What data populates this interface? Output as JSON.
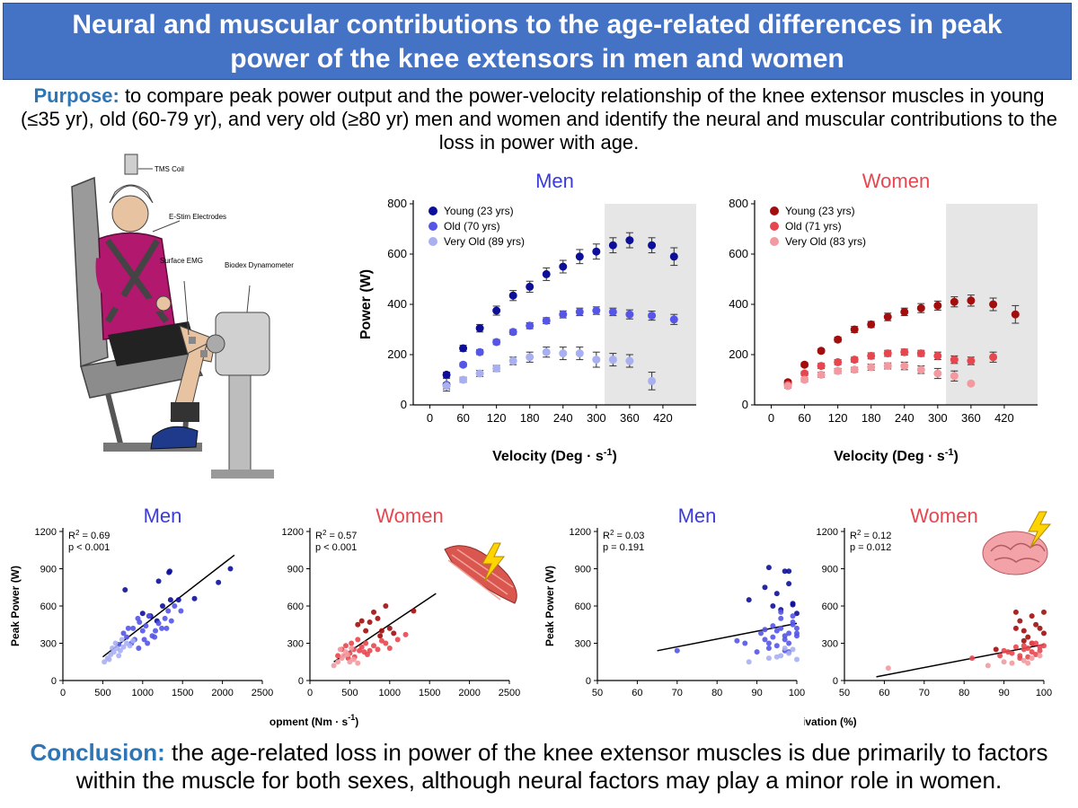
{
  "title": {
    "line1": "Neural and muscular contributions to the age-related differences in peak",
    "line2": "power of the knee extensors in men and women"
  },
  "purpose": {
    "label": "Purpose:",
    "text": " to compare peak power output and the power-velocity relationship of the knee extensor muscles in young (≤35 yr), old (60-79 yr), and very old (≥80 yr) men and women and identify the neural and muscular contributions to the loss in power with age."
  },
  "conclusion": {
    "label": "Conclusion:",
    "text": " the age-related loss in power of the knee extensor muscles is due primarily to factors within the muscle for both sexes, although neural factors may play a minor role in women."
  },
  "illustration": {
    "labels": [
      "TMS Coil",
      "E-Stim Electrodes",
      "Surface EMG",
      "Biodex Dynamometer"
    ]
  },
  "colors": {
    "young_men": "#0d0f99",
    "old_men": "#5555e8",
    "veryold_men": "#a9b0f2",
    "young_women": "#a30d0d",
    "old_women": "#e8464f",
    "veryold_women": "#f29aa0",
    "men_title": "#3b3bdc",
    "women_title": "#e8464f"
  },
  "chart_data": [
    {
      "id": "pv_men",
      "type": "scatter",
      "title": "Men",
      "xlabel": "Velocity (Deg · s",
      "xlabel_sup": "-1",
      "xlabel_end": ")",
      "ylabel": "Power (W)",
      "xlim": [
        -30,
        480
      ],
      "ylim": [
        0,
        800
      ],
      "xticks": [
        0,
        60,
        120,
        180,
        240,
        300,
        360,
        420
      ],
      "yticks": [
        0,
        200,
        400,
        600,
        800
      ],
      "shaded_region": [
        315,
        480
      ],
      "legend": "top-left",
      "series": [
        {
          "name": "Young (23 yrs)",
          "color": "#0d0f99",
          "x": [
            30,
            60,
            90,
            120,
            150,
            180,
            210,
            240,
            270,
            300,
            330,
            360,
            400,
            440
          ],
          "y": [
            120,
            225,
            305,
            375,
            435,
            470,
            520,
            550,
            590,
            610,
            635,
            655,
            635,
            590
          ],
          "err": [
            10,
            12,
            15,
            18,
            20,
            22,
            25,
            25,
            28,
            30,
            30,
            30,
            30,
            35
          ]
        },
        {
          "name": "Old (70 yrs)",
          "color": "#5555e8",
          "x": [
            30,
            60,
            90,
            120,
            150,
            180,
            210,
            240,
            270,
            300,
            330,
            360,
            400,
            440
          ],
          "y": [
            80,
            160,
            210,
            250,
            290,
            315,
            335,
            360,
            370,
            375,
            370,
            360,
            355,
            340
          ],
          "err": [
            25,
            8,
            10,
            10,
            10,
            12,
            12,
            14,
            15,
            15,
            15,
            18,
            18,
            20
          ]
        },
        {
          "name": "Very Old (89 yrs)",
          "color": "#a9b0f2",
          "x": [
            30,
            60,
            90,
            120,
            150,
            180,
            210,
            240,
            270,
            300,
            330,
            360,
            400
          ],
          "y": [
            75,
            100,
            125,
            145,
            175,
            190,
            210,
            205,
            205,
            180,
            180,
            175,
            95
          ],
          "err": [
            12,
            10,
            12,
            12,
            15,
            20,
            20,
            25,
            25,
            30,
            25,
            25,
            35
          ]
        }
      ]
    },
    {
      "id": "pv_women",
      "type": "scatter",
      "title": "Women",
      "xlabel": "Velocity (Deg · s",
      "xlabel_sup": "-1",
      "xlabel_end": ")",
      "ylabel": "",
      "xlim": [
        -30,
        480
      ],
      "ylim": [
        0,
        800
      ],
      "xticks": [
        0,
        60,
        120,
        180,
        240,
        300,
        360,
        420
      ],
      "yticks": [
        0,
        200,
        400,
        600,
        800
      ],
      "shaded_region": [
        315,
        480
      ],
      "legend": "top-left",
      "series": [
        {
          "name": "Young (23 yrs)",
          "color": "#a30d0d",
          "x": [
            30,
            60,
            90,
            120,
            150,
            180,
            210,
            240,
            270,
            300,
            330,
            360,
            400,
            440
          ],
          "y": [
            90,
            160,
            215,
            260,
            300,
            320,
            350,
            370,
            385,
            395,
            410,
            415,
            400,
            360
          ],
          "err": [
            8,
            8,
            8,
            10,
            12,
            12,
            15,
            15,
            18,
            18,
            20,
            22,
            25,
            35
          ]
        },
        {
          "name": "Old (71 yrs)",
          "color": "#e8464f",
          "x": [
            30,
            60,
            90,
            120,
            150,
            180,
            210,
            240,
            270,
            300,
            330,
            360,
            400
          ],
          "y": [
            80,
            125,
            155,
            170,
            180,
            195,
            205,
            210,
            205,
            195,
            180,
            175,
            190
          ],
          "err": [
            8,
            8,
            10,
            10,
            10,
            12,
            12,
            12,
            12,
            15,
            15,
            15,
            20
          ]
        },
        {
          "name": "Very Old (83 yrs)",
          "color": "#f29aa0",
          "x": [
            30,
            60,
            90,
            120,
            150,
            180,
            210,
            240,
            270,
            300,
            330,
            360
          ],
          "y": [
            75,
            100,
            120,
            135,
            140,
            150,
            155,
            155,
            140,
            125,
            115,
            85
          ],
          "err": [
            8,
            8,
            10,
            10,
            10,
            12,
            12,
            15,
            15,
            20,
            20,
            0
          ]
        }
      ]
    },
    {
      "id": "rtd_men",
      "type": "scatter",
      "title": "Men",
      "ylabel": "Peak Power (W)",
      "xlabel": "",
      "xlim": [
        0,
        2500
      ],
      "ylim": [
        0,
        1200
      ],
      "xticks": [
        0,
        500,
        1000,
        1500,
        2000,
        2500
      ],
      "yticks": [
        0,
        300,
        600,
        900,
        1200
      ],
      "annotation": {
        "r2": "R",
        "r2_sup": "2",
        "r2_value": " = 0.69",
        "p": "p < 0.001"
      },
      "fit_line": {
        "x": [
          500,
          2150
        ],
        "y": [
          190,
          1010
        ]
      },
      "groups": [
        {
          "name": "Young",
          "color": "#0d0f99",
          "x": [
            780,
            1200,
            1330,
            1340,
            1350,
            1450,
            1950,
            2100,
            1080,
            1180,
            1250,
            1000,
            1100,
            1650
          ],
          "y": [
            730,
            800,
            870,
            880,
            650,
            650,
            790,
            900,
            520,
            480,
            600,
            540,
            520,
            660
          ]
        },
        {
          "name": "Old",
          "color": "#5555e8",
          "x": [
            700,
            760,
            800,
            820,
            860,
            900,
            940,
            960,
            1000,
            1040,
            1080,
            1120,
            1160,
            1200,
            1240,
            1280,
            1320,
            1360,
            1400,
            1480,
            880,
            950,
            1020,
            1150,
            1060,
            1300
          ],
          "y": [
            290,
            380,
            350,
            420,
            300,
            330,
            500,
            470,
            400,
            440,
            520,
            360,
            400,
            460,
            420,
            500,
            560,
            480,
            600,
            560,
            420,
            260,
            330,
            350,
            300,
            420
          ]
        },
        {
          "name": "Very Old",
          "color": "#a9b0f2",
          "x": [
            520,
            560,
            600,
            640,
            680,
            700,
            720,
            760,
            800,
            840,
            880,
            580,
            620,
            660,
            740
          ],
          "y": [
            150,
            180,
            210,
            230,
            260,
            200,
            240,
            270,
            300,
            280,
            320,
            170,
            260,
            300,
            330
          ]
        }
      ]
    },
    {
      "id": "rtd_women",
      "type": "scatter",
      "title": "Women",
      "ylabel": "",
      "xlabel": "Rate of Torque Development (Nm · s",
      "xlabel_sup": "-1",
      "xlabel_end": ")",
      "xlim": [
        0,
        2500
      ],
      "ylim": [
        0,
        1200
      ],
      "xticks": [
        0,
        500,
        1000,
        1500,
        2000,
        2500
      ],
      "yticks": [
        0,
        300,
        600,
        900,
        1200
      ],
      "annotation": {
        "r2": "R",
        "r2_sup": "2",
        "r2_value": " = 0.57",
        "p": "p < 0.001"
      },
      "fit_line": {
        "x": [
          300,
          1580
        ],
        "y": [
          150,
          700
        ]
      },
      "groups": [
        {
          "name": "Young",
          "color": "#a30d0d",
          "x": [
            600,
            700,
            800,
            850,
            900,
            950,
            1000,
            1050,
            1300,
            750,
            650,
            880
          ],
          "y": [
            450,
            400,
            550,
            500,
            400,
            600,
            420,
            380,
            560,
            470,
            480,
            360
          ]
        },
        {
          "name": "Old",
          "color": "#e8464f",
          "x": [
            350,
            400,
            450,
            500,
            520,
            550,
            600,
            620,
            650,
            700,
            750,
            800,
            850,
            900,
            950,
            1000,
            1100,
            1200,
            480,
            560,
            680,
            720
          ],
          "y": [
            200,
            250,
            280,
            220,
            300,
            250,
            330,
            240,
            270,
            300,
            240,
            280,
            250,
            320,
            300,
            260,
            330,
            370,
            180,
            190,
            230,
            210
          ]
        },
        {
          "name": "Very Old",
          "color": "#f29aa0",
          "x": [
            300,
            350,
            400,
            420,
            450,
            500,
            550,
            600,
            380,
            470,
            520
          ],
          "y": [
            120,
            150,
            180,
            200,
            230,
            150,
            170,
            140,
            250,
            210,
            260
          ]
        }
      ]
    },
    {
      "id": "va_men",
      "type": "scatter",
      "title": "Men",
      "ylabel": "Peak Power (W)",
      "xlabel": "",
      "xlim": [
        50,
        100
      ],
      "ylim": [
        0,
        1200
      ],
      "xticks": [
        50,
        60,
        70,
        80,
        90,
        100
      ],
      "yticks": [
        0,
        300,
        600,
        900,
        1200
      ],
      "annotation": {
        "r2": "R",
        "r2_sup": "2",
        "r2_value": " = 0.03",
        "p": "p = 0.191"
      },
      "fit_line": {
        "x": [
          65,
          100
        ],
        "y": [
          240,
          460
        ]
      },
      "groups": [
        {
          "name": "Young",
          "color": "#0d0f99",
          "x": [
            88,
            93,
            94,
            96,
            97,
            98,
            99,
            100,
            95,
            92,
            98,
            99
          ],
          "y": [
            650,
            910,
            600,
            570,
            880,
            880,
            620,
            540,
            700,
            750,
            780,
            610
          ]
        },
        {
          "name": "Old",
          "color": "#5555e8",
          "x": [
            70,
            85,
            87,
            90,
            91,
            92,
            93,
            94,
            95,
            96,
            96,
            97,
            97,
            98,
            98,
            99,
            99,
            100,
            100,
            95,
            93,
            97,
            98,
            99,
            94,
            96,
            100,
            92
          ],
          "y": [
            240,
            320,
            300,
            230,
            380,
            330,
            300,
            350,
            400,
            420,
            500,
            360,
            330,
            300,
            380,
            450,
            520,
            420,
            360,
            280,
            260,
            240,
            230,
            470,
            440,
            550,
            380,
            410
          ]
        },
        {
          "name": "Very Old",
          "color": "#a9b0f2",
          "x": [
            88,
            93,
            96,
            98,
            99,
            100,
            97,
            95
          ],
          "y": [
            150,
            180,
            200,
            220,
            250,
            170,
            260,
            190
          ]
        }
      ]
    },
    {
      "id": "va_women",
      "type": "scatter",
      "title": "Women",
      "ylabel": "",
      "xlabel": "Voluntary Activation (%)",
      "xlim": [
        50,
        100
      ],
      "ylim": [
        0,
        1200
      ],
      "xticks": [
        50,
        60,
        70,
        80,
        90,
        100
      ],
      "yticks": [
        0,
        300,
        600,
        900,
        1200
      ],
      "annotation": {
        "r2": "R",
        "r2_sup": "2",
        "r2_value": " = 0.12",
        "p": "p = 0.012"
      },
      "fit_line": {
        "x": [
          58,
          100
        ],
        "y": [
          30,
          290
        ]
      },
      "groups": [
        {
          "name": "Young",
          "color": "#a30d0d",
          "x": [
            88,
            93,
            94,
            95,
            96,
            97,
            98,
            99,
            100,
            100,
            97,
            95,
            93
          ],
          "y": [
            250,
            550,
            480,
            400,
            350,
            520,
            450,
            420,
            550,
            380,
            300,
            320,
            420
          ]
        },
        {
          "name": "Old",
          "color": "#e8464f",
          "x": [
            82,
            89,
            90,
            91,
            92,
            93,
            94,
            95,
            96,
            97,
            98,
            99,
            100,
            94,
            96,
            98,
            99,
            97,
            95
          ],
          "y": [
            180,
            200,
            240,
            230,
            220,
            270,
            200,
            250,
            260,
            230,
            300,
            270,
            280,
            180,
            190,
            210,
            240,
            300,
            280
          ]
        },
        {
          "name": "Very Old",
          "color": "#f29aa0",
          "x": [
            61,
            86,
            90,
            92,
            95,
            97,
            99,
            96
          ],
          "y": [
            100,
            120,
            150,
            140,
            160,
            180,
            200,
            140
          ]
        }
      ]
    }
  ]
}
